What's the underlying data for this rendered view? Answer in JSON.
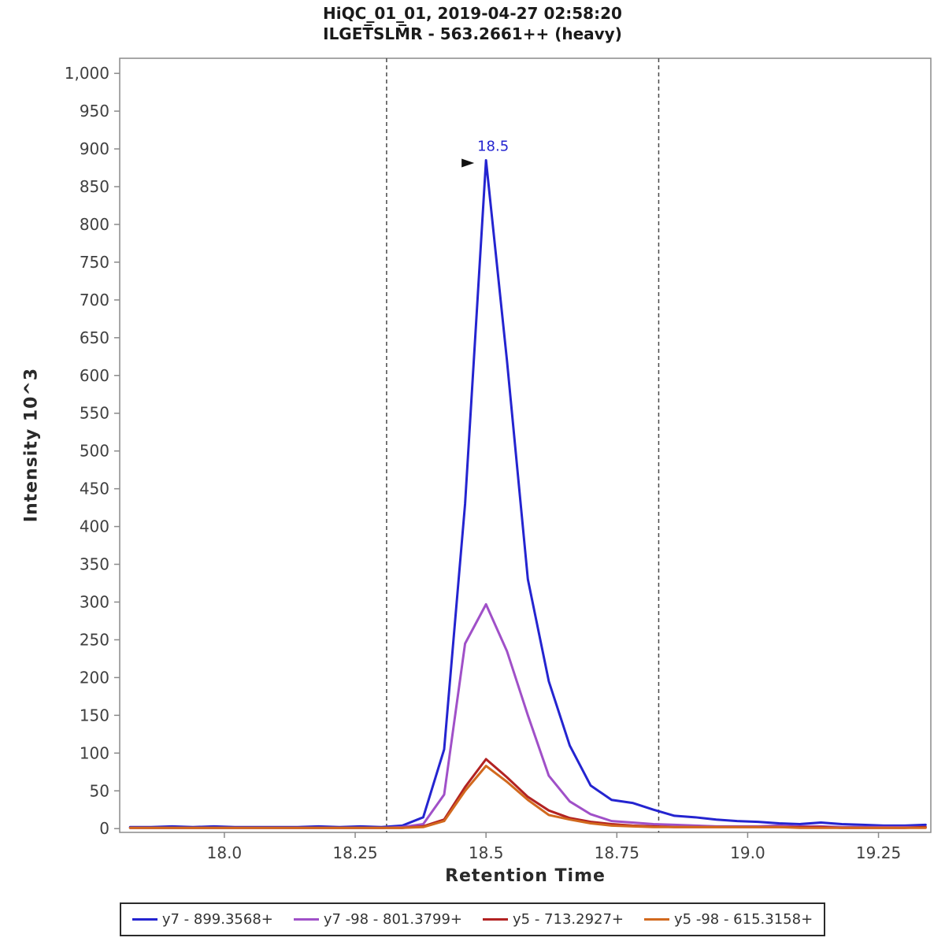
{
  "chart": {
    "title_line1": "HiQC_01_01, 2019-04-27 02:58:20",
    "title_line2": "ILGET̅SLM̅R - 563.2661++ (heavy)",
    "xlabel": "Retention Time",
    "ylabel": "Intensity 10^3"
  },
  "chart_data": {
    "type": "line",
    "title": "HiQC_01_01, 2019-04-27 02:58:20",
    "subtitle": "ILGETSLMR - 563.2661++ (heavy)",
    "xlabel": "Retention Time",
    "ylabel": "Intensity 10^3",
    "xlim": [
      17.8,
      19.35
    ],
    "ylim": [
      0,
      1000
    ],
    "grid": false,
    "legend_position": "bottom",
    "frame_color": "#8a8a8a",
    "boundary_color": "#4a4a4a",
    "tick_label_color": "#3f3f3f",
    "yticks": [
      {
        "v": 0,
        "label": "0"
      },
      {
        "v": 50,
        "label": "50"
      },
      {
        "v": 100,
        "label": "100"
      },
      {
        "v": 150,
        "label": "150"
      },
      {
        "v": 200,
        "label": "200"
      },
      {
        "v": 250,
        "label": "250"
      },
      {
        "v": 300,
        "label": "300"
      },
      {
        "v": 350,
        "label": "350"
      },
      {
        "v": 400,
        "label": "400"
      },
      {
        "v": 450,
        "label": "450"
      },
      {
        "v": 500,
        "label": "500"
      },
      {
        "v": 550,
        "label": "550"
      },
      {
        "v": 600,
        "label": "600"
      },
      {
        "v": 650,
        "label": "650"
      },
      {
        "v": 700,
        "label": "700"
      },
      {
        "v": 750,
        "label": "750"
      },
      {
        "v": 800,
        "label": "800"
      },
      {
        "v": 850,
        "label": "850"
      },
      {
        "v": 900,
        "label": "900"
      },
      {
        "v": 950,
        "label": "950"
      },
      {
        "v": 1000,
        "label": "1,000"
      }
    ],
    "xticks": [
      {
        "v": 18.0,
        "label": "18.0"
      },
      {
        "v": 18.25,
        "label": "18.25"
      },
      {
        "v": 18.5,
        "label": "18.5"
      },
      {
        "v": 18.75,
        "label": "18.75"
      },
      {
        "v": 19.0,
        "label": "19.0"
      },
      {
        "v": 19.25,
        "label": "19.25"
      }
    ],
    "x": [
      17.82,
      17.86,
      17.9,
      17.94,
      17.98,
      18.02,
      18.06,
      18.1,
      18.14,
      18.18,
      18.22,
      18.26,
      18.3,
      18.34,
      18.38,
      18.42,
      18.46,
      18.5,
      18.54,
      18.58,
      18.62,
      18.66,
      18.7,
      18.74,
      18.78,
      18.82,
      18.86,
      18.9,
      18.94,
      18.98,
      19.02,
      19.06,
      19.1,
      19.14,
      19.18,
      19.22,
      19.26,
      19.3,
      19.34
    ],
    "series": [
      {
        "name": "y7 - 899.3568+",
        "color": "#2424d0",
        "values": [
          2,
          2,
          3,
          2,
          3,
          2,
          2,
          2,
          2,
          3,
          2,
          3,
          2,
          4,
          15,
          105,
          430,
          885,
          620,
          330,
          195,
          110,
          57,
          38,
          34,
          25,
          17,
          15,
          12,
          10,
          9,
          7,
          6,
          8,
          6,
          5,
          4,
          4,
          5
        ]
      },
      {
        "name": "y7 -98 - 801.3799+",
        "color": "#a050c8",
        "values": [
          1,
          1,
          1,
          1,
          1,
          1,
          1,
          1,
          1,
          1,
          1,
          1,
          1,
          2,
          6,
          45,
          245,
          297,
          235,
          150,
          70,
          36,
          19,
          10,
          8,
          6,
          5,
          4,
          3,
          3,
          3,
          4,
          3,
          3,
          2,
          2,
          2,
          2,
          2
        ]
      },
      {
        "name": "y5 - 713.2927+",
        "color": "#b22222",
        "values": [
          1,
          1,
          1,
          1,
          1,
          1,
          1,
          1,
          1,
          1,
          1,
          1,
          1,
          1,
          3,
          12,
          55,
          92,
          68,
          42,
          24,
          14,
          9,
          6,
          4,
          3,
          2,
          2,
          2,
          2,
          2,
          2,
          2,
          2,
          1,
          1,
          1,
          1,
          2
        ]
      },
      {
        "name": "y5 -98 - 615.3158+",
        "color": "#d2691e",
        "values": [
          1,
          1,
          1,
          1,
          1,
          1,
          1,
          1,
          1,
          1,
          1,
          1,
          1,
          1,
          2,
          10,
          50,
          83,
          62,
          38,
          18,
          12,
          7,
          4,
          3,
          2,
          2,
          2,
          2,
          2,
          2,
          2,
          1,
          1,
          1,
          1,
          1,
          1,
          1
        ]
      }
    ],
    "integration_boundaries": [
      18.31,
      18.83
    ],
    "peak_annotation": {
      "x": 18.5,
      "y": 885,
      "label": "18.5",
      "arrow_color": "#111111"
    }
  }
}
